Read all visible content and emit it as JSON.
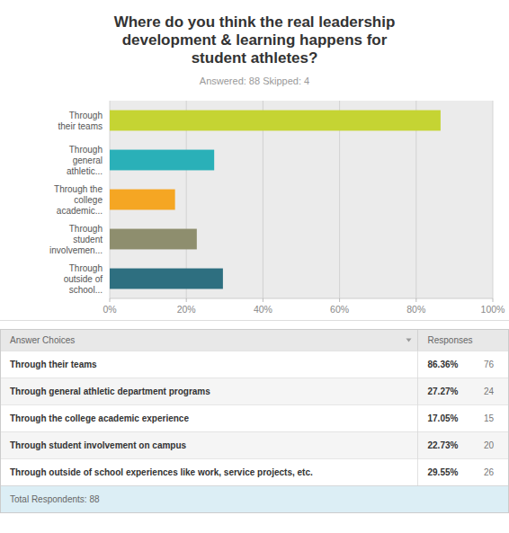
{
  "chart_data": {
    "type": "bar",
    "orientation": "horizontal",
    "title": "Where do you think the real leadership\ndevelopment & learning happens for\nstudent athletes?",
    "subtitle": "Answered: 88    Skipped: 4",
    "categories": [
      "Through\ntheir teams",
      "Through\ngeneral\nathletic...",
      "Through the\ncollege\nacademic...",
      "Through\nstudent\ninvolvemen...",
      "Through\noutside of\nschool..."
    ],
    "values": [
      86.36,
      27.27,
      17.05,
      22.73,
      29.55
    ],
    "colors": [
      "#c5d433",
      "#2ab0b8",
      "#f5a623",
      "#8e8e6e",
      "#2e6f80"
    ],
    "xlim": [
      0,
      100
    ],
    "xticks": [
      {
        "value": 0,
        "label": "0%"
      },
      {
        "value": 20,
        "label": "20%"
      },
      {
        "value": 40,
        "label": "40%"
      },
      {
        "value": 60,
        "label": "60%"
      },
      {
        "value": 80,
        "label": "80%"
      },
      {
        "value": 100,
        "label": "100%"
      }
    ],
    "grid": true,
    "table": {
      "headers": [
        "Answer Choices",
        "Responses"
      ],
      "rows": [
        [
          "Through their teams",
          "86.36%",
          "76"
        ],
        [
          "Through general athletic department programs",
          "27.27%",
          "24"
        ],
        [
          "Through the college academic experience",
          "17.05%",
          "15"
        ],
        [
          "Through student involvement on campus",
          "22.73%",
          "20"
        ],
        [
          "Through outside of school experiences like work, service projects, etc.",
          "29.55%",
          "26"
        ]
      ],
      "footer": "Total Respondents: 88"
    }
  }
}
